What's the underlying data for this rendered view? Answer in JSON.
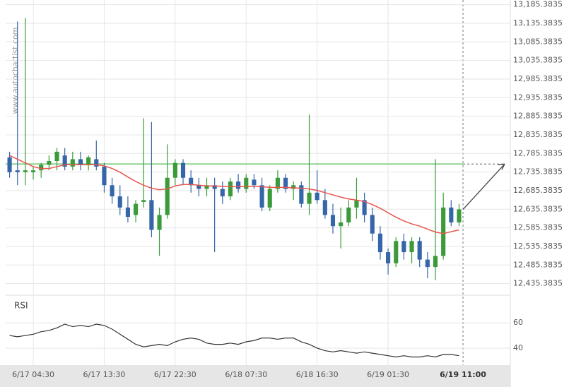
{
  "chart_data": [
    {
      "type": "candlestick",
      "watermark": "www.autochartist.com",
      "x": [
        0,
        1,
        2,
        3,
        4,
        5,
        6,
        7,
        8,
        9,
        10,
        11,
        12,
        13,
        14,
        15,
        16,
        17,
        18,
        19,
        20,
        21,
        22,
        23,
        24,
        25,
        26,
        27,
        28,
        29,
        30,
        31,
        32,
        33,
        34,
        35,
        36,
        37,
        38,
        39,
        40,
        41,
        42,
        43,
        44,
        45,
        46,
        47,
        48,
        49,
        50,
        51,
        52,
        53,
        54,
        55,
        56,
        57
      ],
      "open": [
        12775,
        12740,
        12735,
        12735,
        12740,
        12755,
        12765,
        12780,
        12750,
        12770,
        12755,
        12770,
        12750,
        12700,
        12670,
        12640,
        12620,
        12655,
        12660,
        12580,
        12620,
        12720,
        12760,
        12720,
        12700,
        12690,
        12700,
        12690,
        12670,
        12710,
        12690,
        12715,
        12700,
        12640,
        12690,
        12720,
        12690,
        12700,
        12650,
        12680,
        12660,
        12620,
        12590,
        12600,
        12640,
        12660,
        12620,
        12570,
        12520,
        12490,
        12550,
        12520,
        12550,
        12500,
        12480,
        12510,
        12640,
        12600
      ],
      "high": [
        12790,
        13140,
        13150,
        12750,
        12760,
        12780,
        12800,
        12800,
        12790,
        12790,
        12780,
        12820,
        12760,
        12720,
        12700,
        12670,
        12660,
        12880,
        12870,
        12640,
        12810,
        12770,
        12770,
        12740,
        12720,
        12720,
        12720,
        12710,
        12720,
        12730,
        12730,
        12730,
        12720,
        12700,
        12740,
        12730,
        12710,
        12710,
        12890,
        12740,
        12690,
        12650,
        12640,
        12660,
        12720,
        12680,
        12640,
        12590,
        12530,
        12560,
        12570,
        12560,
        12560,
        12520,
        12770,
        12680,
        12660,
        12650
      ],
      "low": [
        12720,
        12700,
        12700,
        12715,
        12720,
        12740,
        12740,
        12740,
        12740,
        12740,
        12740,
        12740,
        12680,
        12650,
        12620,
        12600,
        12600,
        12640,
        12560,
        12510,
        12610,
        12700,
        12700,
        12680,
        12670,
        12670,
        12520,
        12650,
        12660,
        12680,
        12680,
        12690,
        12630,
        12630,
        12680,
        12680,
        12660,
        12640,
        12620,
        12650,
        12610,
        12570,
        12530,
        12590,
        12610,
        12600,
        12550,
        12500,
        12460,
        12480,
        12500,
        12490,
        12480,
        12450,
        12445,
        12500,
        12590,
        12590
      ],
      "close": [
        12735,
        12735,
        12740,
        12740,
        12755,
        12765,
        12790,
        12750,
        12770,
        12755,
        12775,
        12750,
        12700,
        12670,
        12640,
        12615,
        12650,
        12660,
        12580,
        12620,
        12720,
        12760,
        12720,
        12700,
        12690,
        12700,
        12690,
        12670,
        12710,
        12690,
        12720,
        12700,
        12640,
        12690,
        12720,
        12690,
        12700,
        12650,
        12680,
        12660,
        12620,
        12590,
        12600,
        12640,
        12660,
        12620,
        12570,
        12520,
        12490,
        12550,
        12520,
        12550,
        12500,
        12480,
        12510,
        12640,
        12600,
        12635
      ],
      "up_color": "#3b9b3b",
      "down_color": "#3566a8",
      "ma": [
        12780,
        12770,
        12760,
        12750,
        12745,
        12745,
        12750,
        12755,
        12755,
        12755,
        12755,
        12755,
        12752,
        12745,
        12735,
        12722,
        12710,
        12700,
        12692,
        12688,
        12690,
        12698,
        12702,
        12702,
        12700,
        12698,
        12698,
        12697,
        12696,
        12696,
        12697,
        12697,
        12696,
        12694,
        12694,
        12694,
        12693,
        12692,
        12690,
        12686,
        12680,
        12674,
        12668,
        12663,
        12660,
        12656,
        12648,
        12638,
        12626,
        12614,
        12604,
        12596,
        12590,
        12582,
        12574,
        12570,
        12575,
        12580
      ],
      "ma_color": "#e8554e",
      "level": 12757,
      "level_color": "#8fd48f",
      "xlim": [
        -0.5,
        63.5
      ],
      "ylim": [
        12410,
        13198
      ],
      "yticks": [
        {
          "value": 13185.3835,
          "label": "13,185.3835"
        },
        {
          "value": 13135.3835,
          "label": "13,135.3835"
        },
        {
          "value": 13085.3835,
          "label": "13,085.3835"
        },
        {
          "value": 13035.3835,
          "label": "13,035.3835"
        },
        {
          "value": 12985.3835,
          "label": "12,985.3835"
        },
        {
          "value": 12935.3835,
          "label": "12,935.3835"
        },
        {
          "value": 12885.3835,
          "label": "12,885.3835"
        },
        {
          "value": 12835.3835,
          "label": "12,835.3835"
        },
        {
          "value": 12785.3835,
          "label": "12,785.3835"
        },
        {
          "value": 12735.3835,
          "label": "12,735.3835"
        },
        {
          "value": 12685.3835,
          "label": "12,685.3835"
        },
        {
          "value": 12635.3835,
          "label": "12,635.3835"
        },
        {
          "value": 12585.3835,
          "label": "12,585.3835"
        },
        {
          "value": 12535.3835,
          "label": "12,535.3835"
        },
        {
          "value": 12485.3835,
          "label": "12,485.3835"
        },
        {
          "value": 12435.3835,
          "label": "12,435.3835"
        }
      ],
      "xticks": [
        {
          "value": 3,
          "label": "6/17 04:30"
        },
        {
          "value": 12,
          "label": "6/17 13:30"
        },
        {
          "value": 21,
          "label": "6/17 22:30"
        },
        {
          "value": 30,
          "label": "6/18 07:30"
        },
        {
          "value": 39,
          "label": "6/18 16:30"
        },
        {
          "value": 48,
          "label": "6/19 01:30"
        },
        {
          "value": 57.5,
          "label": "6/19 11:00"
        }
      ]
    },
    {
      "type": "line",
      "title": "RSI",
      "values": [
        50,
        49,
        50,
        51,
        53,
        54,
        56,
        59,
        57,
        58,
        57,
        59,
        58,
        55,
        51,
        47,
        43,
        41,
        42,
        43,
        42,
        45,
        47,
        48,
        47,
        44,
        43,
        43,
        44,
        43,
        45,
        46,
        48,
        48,
        47,
        48,
        48,
        45,
        43,
        40,
        38,
        37,
        38,
        37,
        36,
        37,
        36,
        35,
        34,
        33,
        34,
        33,
        33,
        34,
        33,
        35,
        35,
        34
      ],
      "color": "#333333",
      "ylim": [
        26,
        78
      ],
      "yticks": [
        60,
        40
      ]
    }
  ]
}
